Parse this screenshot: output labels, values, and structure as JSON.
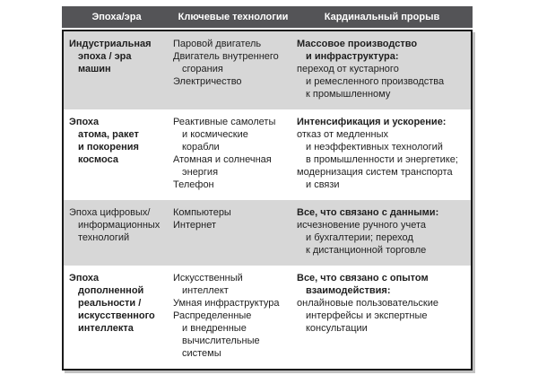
{
  "colors": {
    "header_bg": "#545457",
    "header_text": "#ffffff",
    "row_shaded": "#d7d7d7",
    "row_plain": "#ffffff",
    "border": "#1a1a1a",
    "shadow": "#c2c2c2",
    "text": "#1f1f1f"
  },
  "table": {
    "headers": [
      "Эпоха/эра",
      "Ключевые технологии",
      "Кардинальный прорыв"
    ],
    "rows": [
      {
        "shaded": true,
        "era": {
          "bold": true,
          "lines": [
            "Индустриальная",
            "эпоха / эра",
            "машин"
          ]
        },
        "technologies": [
          [
            "Паровой двигатель"
          ],
          [
            "Двигатель внутреннего",
            "сгорания"
          ],
          [
            "Электричество"
          ]
        ],
        "breakthrough": {
          "heading_lines": [
            "Массовое производство",
            "и инфраструктура:"
          ],
          "items": [
            [
              "переход от кустарного",
              "и ремесленного производства",
              "к промышленному"
            ]
          ]
        }
      },
      {
        "shaded": false,
        "era": {
          "bold": true,
          "lines": [
            "Эпоха",
            "атома, ракет",
            "и покорения",
            "космоса"
          ]
        },
        "technologies": [
          [
            "Реактивные самолеты",
            "и космические",
            "корабли"
          ],
          [
            "Атомная и солнечная",
            "энергия"
          ],
          [
            "Телефон"
          ]
        ],
        "breakthrough": {
          "heading_lines": [
            "Интенсификация и ускорение:"
          ],
          "items": [
            [
              "отказ от медленных",
              "и неэффективных технологий",
              "в промышленности и энергетике;"
            ],
            [
              "модернизация систем транспорта",
              "и связи"
            ]
          ]
        }
      },
      {
        "shaded": true,
        "era": {
          "bold": false,
          "lines": [
            "Эпоха цифровых/",
            "информационных",
            "технологий"
          ]
        },
        "technologies": [
          [
            "Компьютеры"
          ],
          [
            "Интернет"
          ]
        ],
        "breakthrough": {
          "heading_lines": [
            "Все, что связано с данными:"
          ],
          "items": [
            [
              "исчезновение ручного учета",
              "и бухгалтерии; переход",
              "к дистанционной торговле"
            ]
          ]
        }
      },
      {
        "shaded": false,
        "era": {
          "bold": true,
          "lines": [
            "Эпоха",
            "дополненной",
            "реальности /",
            "искусственного",
            "интеллекта"
          ]
        },
        "technologies": [
          [
            "Искусственный",
            "интеллект"
          ],
          [
            "Умная инфраструктура"
          ],
          [
            "Распределенные",
            "и внедренные",
            "вычислительные",
            "системы"
          ]
        ],
        "breakthrough": {
          "heading_lines": [
            "Все, что связано с опытом",
            "взаимодействия:"
          ],
          "items": [
            [
              "онлайновые пользовательские",
              "интерфейсы и экспертные",
              "консультации"
            ]
          ]
        }
      }
    ]
  }
}
